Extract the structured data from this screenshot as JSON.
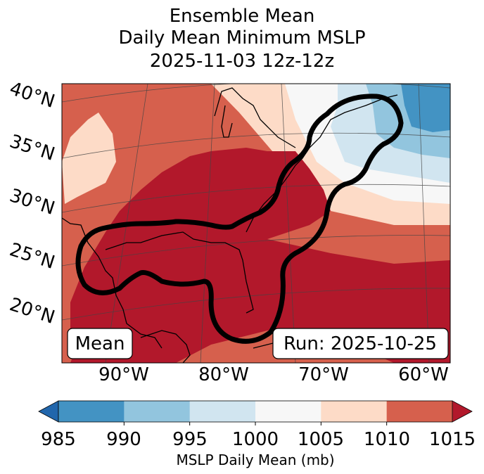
{
  "title": {
    "line1": "Ensemble Mean",
    "line2": "Daily Mean Minimum MSLP",
    "line3": "2025-11-03 12z-12z"
  },
  "map": {
    "lat_labels": [
      "40°N",
      "35°N",
      "30°N",
      "25°N",
      "20°N"
    ],
    "lon_labels": [
      "90°W",
      "80°W",
      "70°W",
      "60°W"
    ],
    "annotation_left": "Mean",
    "annotation_right": "Run: 2025-10-25",
    "contour_color": "#000000"
  },
  "colorbar": {
    "label": "MSLP Daily Mean (mb)",
    "ticks": [
      "985",
      "990",
      "995",
      "1000",
      "1005",
      "1010",
      "1015"
    ],
    "colors": [
      "#4393c3",
      "#92c5de",
      "#d1e5f0",
      "#f7f7f7",
      "#fddbc7",
      "#d6604d"
    ],
    "under_color": "#2166ac",
    "over_color": "#b2182b"
  },
  "colors": {
    "c985": "#4393c3",
    "c990": "#92c5de",
    "c995": "#d1e5f0",
    "c1000": "#f7f7f7",
    "c1005": "#fddbc7",
    "c1010": "#d6604d",
    "c1015": "#b2182b"
  }
}
